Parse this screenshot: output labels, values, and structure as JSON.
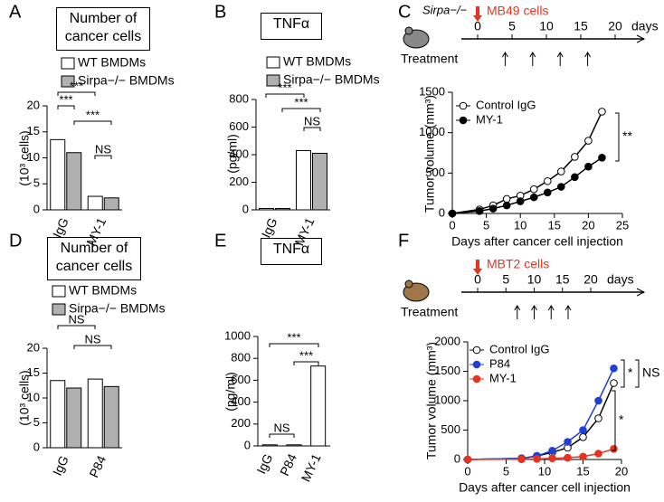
{
  "chart_data": [
    {
      "type": "bar",
      "label": "A",
      "title": "Number of cancer cells",
      "y_label": "(10³ cells)",
      "categories": [
        "IgG",
        "MY-1"
      ],
      "series": [
        {
          "name": "WT BMDMs",
          "color": "#ffffff",
          "values": [
            13.5,
            2.6
          ]
        },
        {
          "name": "Sirpa−/− BMDMs",
          "color": "#b0b0b0",
          "values": [
            11.0,
            2.3
          ]
        }
      ],
      "ylim": [
        0,
        20
      ],
      "yticks": [
        0,
        5,
        10,
        15,
        20
      ],
      "annotations": [
        "***",
        "***",
        "***",
        "NS"
      ]
    },
    {
      "type": "bar",
      "label": "B",
      "title": "TNFα",
      "y_label": "(pg/ml)",
      "categories": [
        "IgG",
        "MY-1"
      ],
      "series": [
        {
          "name": "WT BMDMs",
          "color": "#ffffff",
          "values": [
            10,
            430
          ]
        },
        {
          "name": "Sirpa−/− BMDMs",
          "color": "#b0b0b0",
          "values": [
            10,
            410
          ]
        }
      ],
      "ylim": [
        0,
        800
      ],
      "yticks": [
        0,
        200,
        400,
        600,
        800
      ],
      "annotations": [
        "***",
        "***",
        "NS"
      ]
    },
    {
      "type": "line",
      "label": "C",
      "schedule": {
        "strain": "Sirpa−/−",
        "event": "MB49 cells",
        "ticks": [
          0,
          5,
          10,
          15,
          20
        ],
        "unit": "days",
        "treatment": "Treatment",
        "treatment_days": [
          4,
          8,
          12,
          16
        ]
      },
      "x_label": "Days after cancer cell injection",
      "y_label": "Tumor volume (mm³)",
      "x": [
        0,
        4,
        6,
        8,
        10,
        12,
        14,
        16,
        18,
        20,
        22
      ],
      "series": [
        {
          "name": "Control IgG",
          "color": "#ffffff",
          "values": [
            0,
            50,
            100,
            180,
            220,
            300,
            400,
            520,
            700,
            900,
            1260
          ]
        },
        {
          "name": "MY-1",
          "color": "#000000",
          "values": [
            0,
            30,
            60,
            100,
            150,
            200,
            260,
            330,
            450,
            580,
            690
          ]
        }
      ],
      "xlim": [
        0,
        25
      ],
      "xticks": [
        0,
        5,
        10,
        15,
        20,
        25
      ],
      "ylim": [
        0,
        1500
      ],
      "yticks": [
        0,
        500,
        1000,
        1500
      ],
      "annotations": [
        "**"
      ]
    },
    {
      "type": "bar",
      "label": "D",
      "title": "Number of cancer cells",
      "y_label": "(10³ cells)",
      "categories": [
        "IgG",
        "P84"
      ],
      "series": [
        {
          "name": "WT BMDMs",
          "color": "#ffffff",
          "values": [
            13.5,
            13.8
          ]
        },
        {
          "name": "Sirpa−/− BMDMs",
          "color": "#b0b0b0",
          "values": [
            12.0,
            12.3
          ]
        }
      ],
      "ylim": [
        0,
        20
      ],
      "yticks": [
        0,
        5,
        10,
        15,
        20
      ],
      "annotations": [
        "NS",
        "NS"
      ]
    },
    {
      "type": "bar",
      "label": "E",
      "title": "TNFα",
      "y_label": "(pg/ml)",
      "categories": [
        "IgG",
        "P84",
        "MY-1"
      ],
      "series": [
        {
          "color": "#ffffff",
          "values": [
            10,
            10,
            730
          ]
        }
      ],
      "ylim": [
        0,
        1000
      ],
      "yticks": [
        0,
        200,
        400,
        600,
        800,
        1000
      ],
      "annotations": [
        "***",
        "***",
        "NS"
      ]
    },
    {
      "type": "line",
      "label": "F",
      "schedule": {
        "event": "MBT2 cells",
        "ticks": [
          0,
          5,
          10,
          15,
          20
        ],
        "unit": "days",
        "treatment": "Treatment",
        "treatment_days": [
          7,
          10,
          13,
          16
        ]
      },
      "x_label": "Days after cancer cell injection",
      "y_label": "Tumor volume (mm³)",
      "x": [
        0,
        7,
        9,
        11,
        13,
        15,
        17,
        19
      ],
      "series": [
        {
          "name": "Control IgG",
          "color": "#ffffff",
          "values": [
            0,
            20,
            60,
            120,
            200,
            380,
            700,
            1300
          ]
        },
        {
          "name": "P84",
          "color": "#1f3fd6",
          "values": [
            0,
            20,
            60,
            150,
            300,
            500,
            1000,
            1550
          ]
        },
        {
          "name": "MY-1",
          "color": "#e8321f",
          "values": [
            0,
            5,
            10,
            20,
            30,
            50,
            100,
            180
          ]
        }
      ],
      "xlim": [
        0,
        20
      ],
      "xticks": [
        0,
        5,
        10,
        15,
        20
      ],
      "ylim": [
        0,
        2000
      ],
      "yticks": [
        0,
        500,
        1000,
        1500,
        2000
      ],
      "annotations": [
        "*",
        "NS",
        "*"
      ]
    }
  ]
}
